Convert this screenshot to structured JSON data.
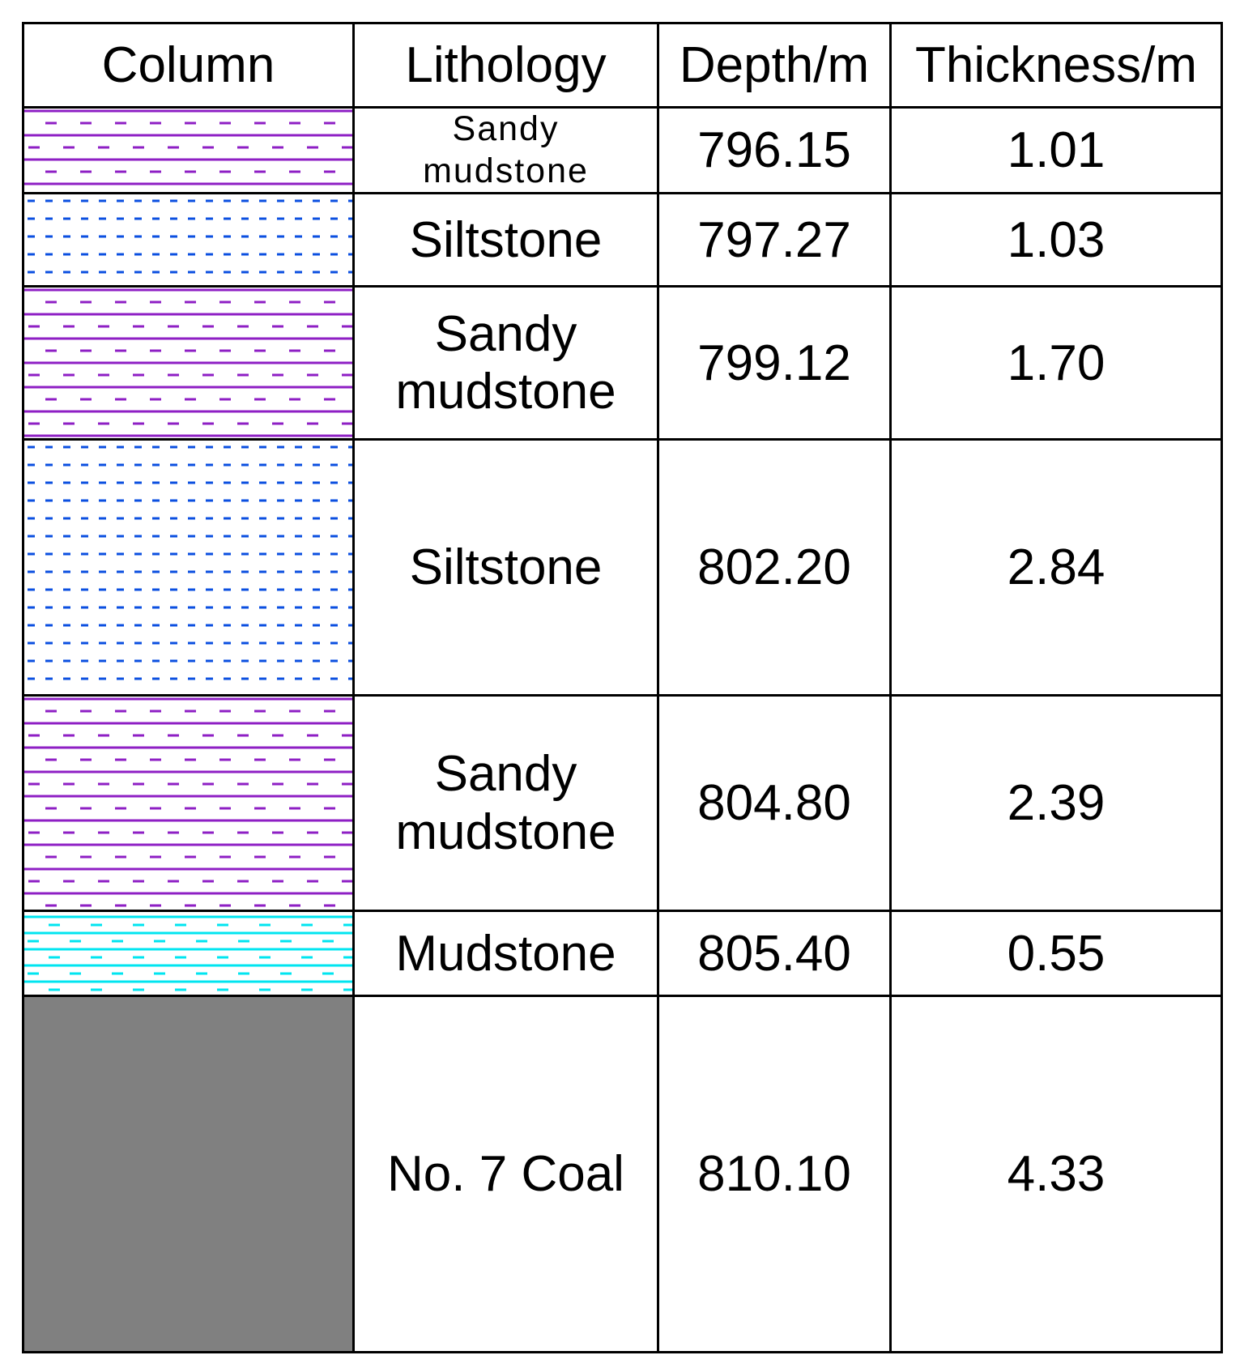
{
  "table": {
    "header": [
      "Column",
      "Lithology",
      "Depth/m",
      "Thickness/m"
    ],
    "rows": [
      {
        "lithology": "Sandy mudstone",
        "depth": "796.15",
        "thickness": "1.01"
      },
      {
        "lithology": "Siltstone",
        "depth": "797.27",
        "thickness": "1.03"
      },
      {
        "lithology": "Sandy mudstone",
        "depth": "799.12",
        "thickness": "1.70"
      },
      {
        "lithology": "Siltstone",
        "depth": "802.20",
        "thickness": "2.84"
      },
      {
        "lithology": "Sandy mudstone",
        "depth": "804.80",
        "thickness": "2.39"
      },
      {
        "lithology": "Mudstone",
        "depth": "805.40",
        "thickness": "0.55"
      },
      {
        "lithology": "No. 7 Coal",
        "depth": "810.10",
        "thickness": "4.33"
      }
    ]
  }
}
